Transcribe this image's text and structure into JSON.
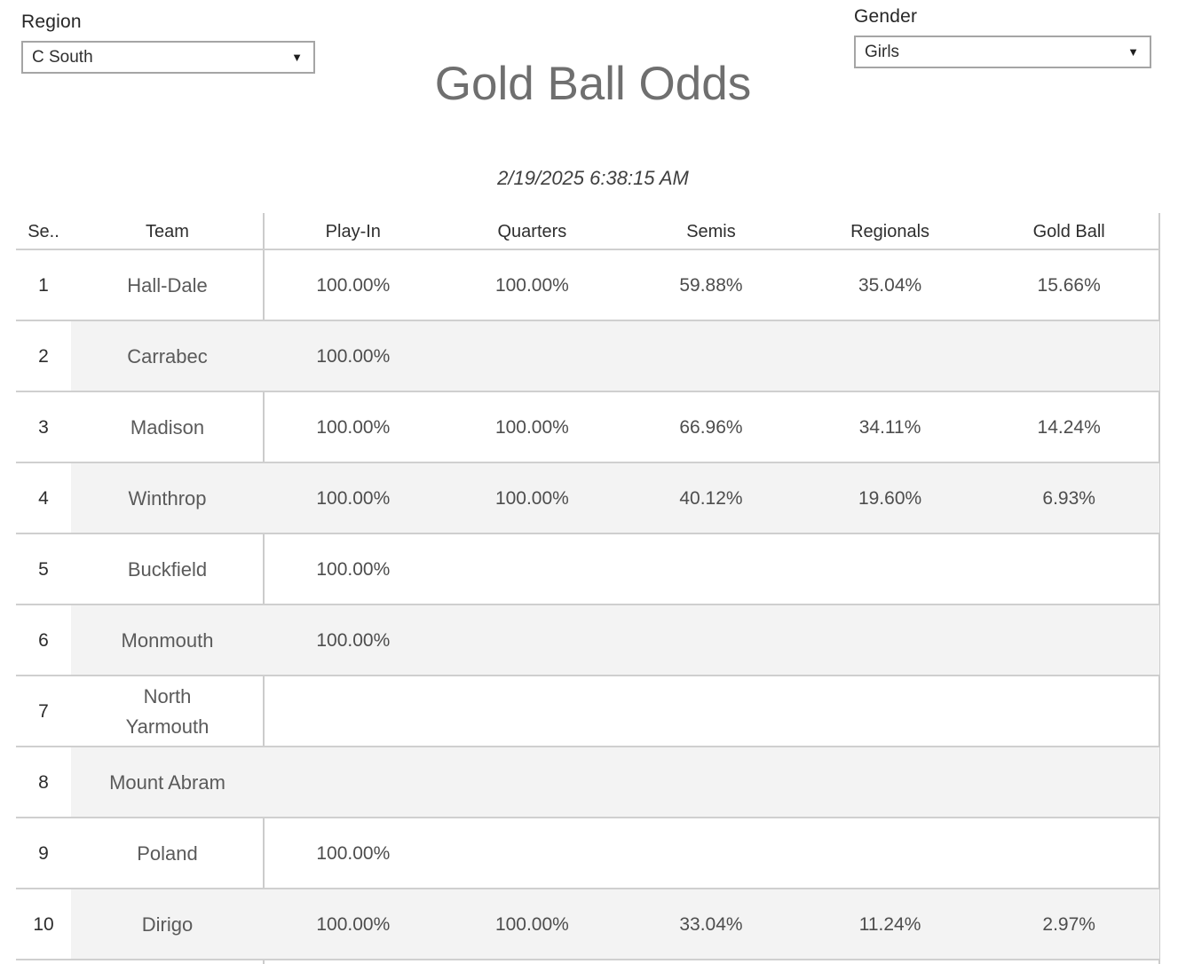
{
  "title": "Gold Ball Odds",
  "timestamp": "2/19/2025 6:38:15 AM",
  "filters": {
    "region": {
      "label": "Region",
      "value": "C South"
    },
    "gender": {
      "label": "Gender",
      "value": "Girls"
    }
  },
  "icons": {
    "dropdown_arrow": "▼"
  },
  "colors": {
    "title_text": "#6f6f6f",
    "row_band": "#f3f3f3",
    "grid_line": "#cfcfcf",
    "header_text": "#2e2e2e",
    "team_text": "#5a5a5a",
    "value_text": "#4d4d4d"
  },
  "chart_data": {
    "type": "table",
    "columns": [
      "Se..",
      "Team",
      "Play-In",
      "Quarters",
      "Semis",
      "Regionals",
      "Gold Ball"
    ],
    "rows": [
      {
        "seed": "1",
        "team": "Hall-Dale",
        "values": [
          "100.00%",
          "100.00%",
          "59.88%",
          "35.04%",
          "15.66%"
        ]
      },
      {
        "seed": "2",
        "team": "Carrabec",
        "values": [
          "100.00%",
          "",
          "",
          "",
          ""
        ]
      },
      {
        "seed": "3",
        "team": "Madison",
        "values": [
          "100.00%",
          "100.00%",
          "66.96%",
          "34.11%",
          "14.24%"
        ]
      },
      {
        "seed": "4",
        "team": "Winthrop",
        "values": [
          "100.00%",
          "100.00%",
          "40.12%",
          "19.60%",
          "6.93%"
        ]
      },
      {
        "seed": "5",
        "team": "Buckfield",
        "values": [
          "100.00%",
          "",
          "",
          "",
          ""
        ]
      },
      {
        "seed": "6",
        "team": "Monmouth",
        "values": [
          "100.00%",
          "",
          "",
          "",
          ""
        ]
      },
      {
        "seed": "7",
        "team": "North Yarmouth",
        "values": [
          "",
          "",
          "",
          "",
          ""
        ]
      },
      {
        "seed": "8",
        "team": "Mount Abram",
        "values": [
          "",
          "",
          "",
          "",
          ""
        ]
      },
      {
        "seed": "9",
        "team": "Poland",
        "values": [
          "100.00%",
          "",
          "",
          "",
          ""
        ]
      },
      {
        "seed": "10",
        "team": "Dirigo",
        "values": [
          "100.00%",
          "100.00%",
          "33.04%",
          "11.24%",
          "2.97%"
        ]
      }
    ]
  }
}
